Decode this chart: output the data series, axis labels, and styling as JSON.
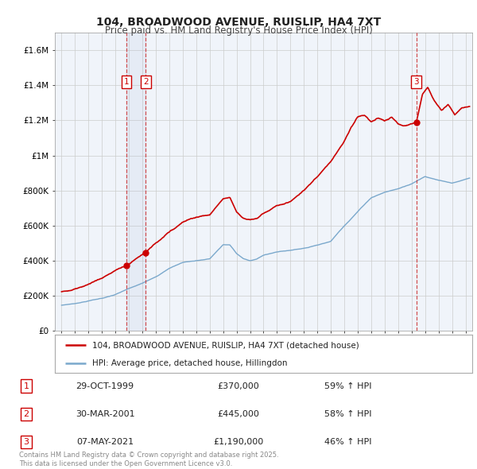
{
  "title": "104, BROADWOOD AVENUE, RUISLIP, HA4 7XT",
  "subtitle": "Price paid vs. HM Land Registry's House Price Index (HPI)",
  "red_line_color": "#cc0000",
  "blue_line_color": "#7aa8cc",
  "background_color": "#ffffff",
  "chart_bg_color": "#f0f4fa",
  "grid_color": "#cccccc",
  "ylim": [
    0,
    1700000
  ],
  "xlim_start": 1994.5,
  "xlim_end": 2025.5,
  "sales": [
    {
      "num": 1,
      "date": "29-OCT-1999",
      "year": 1999.83,
      "price": 370000,
      "pct": "59%",
      "dir": "↑"
    },
    {
      "num": 2,
      "date": "30-MAR-2001",
      "year": 2001.25,
      "price": 445000,
      "pct": "58%",
      "dir": "↑"
    },
    {
      "num": 3,
      "date": "07-MAY-2021",
      "year": 2021.35,
      "price": 1190000,
      "pct": "46%",
      "dir": "↑"
    }
  ],
  "legend_red": "104, BROADWOOD AVENUE, RUISLIP, HA4 7XT (detached house)",
  "legend_blue": "HPI: Average price, detached house, Hillingdon",
  "footer": "Contains HM Land Registry data © Crown copyright and database right 2025.\nThis data is licensed under the Open Government Licence v3.0.",
  "yticks": [
    0,
    200000,
    400000,
    600000,
    800000,
    1000000,
    1200000,
    1400000,
    1600000
  ],
  "ytick_labels": [
    "£0",
    "£200K",
    "£400K",
    "£600K",
    "£800K",
    "£1M",
    "£1.2M",
    "£1.4M",
    "£1.6M"
  ],
  "red_keypoints_x": [
    1995.0,
    1996.0,
    1997.0,
    1998.0,
    1999.0,
    1999.83,
    2000.5,
    2001.25,
    2002.0,
    2003.0,
    2004.0,
    2005.0,
    2006.0,
    2007.0,
    2007.5,
    2008.0,
    2008.5,
    2009.0,
    2009.5,
    2010.0,
    2011.0,
    2012.0,
    2013.0,
    2014.0,
    2015.0,
    2016.0,
    2016.5,
    2017.0,
    2017.5,
    2018.0,
    2018.5,
    2019.0,
    2019.5,
    2020.0,
    2020.5,
    2021.0,
    2021.35,
    2021.8,
    2022.2,
    2022.7,
    2023.2,
    2023.7,
    2024.2,
    2024.7,
    2025.3
  ],
  "red_keypoints_y": [
    220000,
    240000,
    265000,
    300000,
    345000,
    370000,
    410000,
    445000,
    500000,
    560000,
    620000,
    650000,
    660000,
    750000,
    760000,
    680000,
    640000,
    630000,
    640000,
    670000,
    710000,
    740000,
    800000,
    880000,
    970000,
    1080000,
    1160000,
    1220000,
    1230000,
    1190000,
    1210000,
    1200000,
    1220000,
    1180000,
    1170000,
    1180000,
    1190000,
    1350000,
    1390000,
    1310000,
    1260000,
    1290000,
    1230000,
    1270000,
    1280000
  ],
  "blue_keypoints_x": [
    1995.0,
    1996.0,
    1997.0,
    1998.0,
    1999.0,
    2000.0,
    2001.0,
    2002.0,
    2003.0,
    2004.0,
    2005.0,
    2006.0,
    2007.0,
    2007.5,
    2008.0,
    2008.5,
    2009.0,
    2009.5,
    2010.0,
    2011.0,
    2012.0,
    2013.0,
    2014.0,
    2015.0,
    2016.0,
    2017.0,
    2018.0,
    2019.0,
    2020.0,
    2020.5,
    2021.0,
    2021.5,
    2022.0,
    2022.5,
    2023.0,
    2023.5,
    2024.0,
    2024.5,
    2025.3
  ],
  "blue_keypoints_y": [
    145000,
    155000,
    170000,
    185000,
    205000,
    240000,
    270000,
    310000,
    355000,
    390000,
    400000,
    410000,
    490000,
    490000,
    440000,
    410000,
    400000,
    410000,
    430000,
    450000,
    460000,
    470000,
    490000,
    510000,
    600000,
    680000,
    760000,
    790000,
    810000,
    825000,
    840000,
    860000,
    880000,
    870000,
    860000,
    850000,
    840000,
    850000,
    870000
  ]
}
